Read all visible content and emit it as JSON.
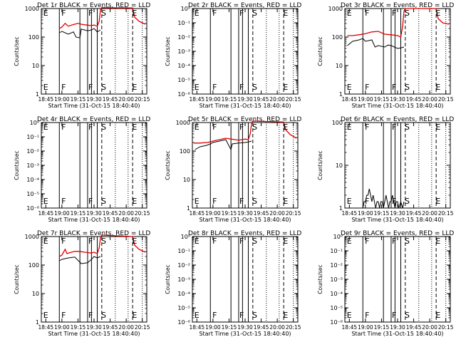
{
  "chart_data": [
    {
      "id": "det1",
      "type": "line",
      "title": "Det 1r BLACK = Events, RED = LLD",
      "xlabel": "Start Time (31-Oct-15 18:40:40)",
      "ylabel": "Counts/sec",
      "xlim": [
        18.68,
        20.32
      ],
      "x_ticks": [
        18.75,
        19.0,
        19.25,
        19.5,
        19.75,
        20.0,
        20.25
      ],
      "x_tick_labels": [
        "18:45",
        "19:00",
        "19:15",
        "19:30",
        "19:45",
        "20:00",
        "20:15"
      ],
      "yscale": "log",
      "ylim_log10": [
        0,
        3
      ],
      "y_ticks_log10": [
        0,
        1,
        2,
        3
      ],
      "y_tick_labels": [
        "1",
        "10",
        "100",
        "1000"
      ],
      "vlines_solid": [
        18.96,
        19.28,
        19.4,
        19.46,
        19.55
      ],
      "vlines_dashed": [
        19.62,
        20.1
      ],
      "vlines_dotted": [
        19.83,
        20.03,
        20.25
      ],
      "markers": [
        {
          "label": "E",
          "x": 18.7
        },
        {
          "label": "F",
          "x": 18.98
        },
        {
          "label": "F",
          "x": 19.4
        },
        {
          "label": "S",
          "x": 19.6
        },
        {
          "label": "E",
          "x": 20.08
        }
      ],
      "series": [
        {
          "name": "LLD",
          "color": "#e00000",
          "x": [
            18.96,
            19.0,
            19.05,
            19.1,
            19.15,
            19.2,
            19.25,
            19.3,
            19.35,
            19.4,
            19.45,
            19.5,
            19.55,
            19.58,
            19.6,
            19.62,
            20.1,
            20.13,
            20.2,
            20.3
          ],
          "log10y": [
            2.3,
            2.35,
            2.48,
            2.38,
            2.42,
            2.45,
            2.48,
            2.45,
            2.43,
            2.42,
            2.4,
            2.42,
            2.38,
            2.55,
            2.95,
            3.03,
            3.02,
            2.7,
            2.55,
            2.45
          ]
        },
        {
          "name": "Events",
          "color": "#000000",
          "x": [
            18.96,
            19.0,
            19.1,
            19.18,
            19.22,
            19.28,
            19.3,
            19.4,
            19.46,
            19.5,
            19.55,
            19.6
          ],
          "log10y": [
            2.15,
            2.2,
            2.1,
            2.18,
            2.0,
            1.97,
            2.28,
            2.22,
            2.25,
            2.3,
            2.18,
            2.25
          ]
        }
      ]
    },
    {
      "id": "det2",
      "type": "line",
      "title": "Det 2r BLACK = Events, RED = LLD",
      "xlabel": "Start Time (31-Oct-15 18:40:40)",
      "ylabel": "Counts/sec",
      "xlim": [
        18.68,
        20.32
      ],
      "x_ticks": [
        18.75,
        19.0,
        19.25,
        19.5,
        19.75,
        20.0,
        20.25
      ],
      "x_tick_labels": [
        "18:45",
        "19:00",
        "19:15",
        "19:30",
        "19:45",
        "20:00",
        "20:15"
      ],
      "yscale": "log",
      "ylim_log10": [
        -6,
        0
      ],
      "y_ticks_log10": [
        -6,
        -5,
        -4,
        -3,
        -2,
        -1,
        0
      ],
      "y_tick_labels": [
        "10⁻⁶",
        "10⁻⁵",
        "10⁻⁴",
        "10⁻³",
        "10⁻²",
        "10⁻¹",
        "10⁰"
      ],
      "vlines_solid": [
        18.96,
        19.28,
        19.4,
        19.46,
        19.55
      ],
      "vlines_dashed": [
        19.62,
        20.1
      ],
      "vlines_dotted": [
        19.83,
        20.03,
        20.25
      ],
      "markers": [
        {
          "label": "E",
          "x": 18.7
        },
        {
          "label": "F",
          "x": 18.98
        },
        {
          "label": "F",
          "x": 19.4
        },
        {
          "label": "S",
          "x": 19.6
        },
        {
          "label": "E",
          "x": 20.08
        }
      ],
      "series": []
    },
    {
      "id": "det3",
      "type": "line",
      "title": "Det 3r BLACK = Events, RED = LLD",
      "xlabel": "Start Time (31-Oct-15 18:40:40)",
      "ylabel": "Counts/sec",
      "xlim": [
        18.68,
        20.32
      ],
      "x_ticks": [
        18.75,
        19.0,
        19.25,
        19.5,
        19.75,
        20.0,
        20.25
      ],
      "x_tick_labels": [
        "18:45",
        "19:00",
        "19:15",
        "19:30",
        "19:45",
        "20:00",
        "20:15"
      ],
      "yscale": "log",
      "ylim_log10": [
        0,
        3
      ],
      "y_ticks_log10": [
        0,
        1,
        2,
        3
      ],
      "y_tick_labels": [
        "1",
        "10",
        "100",
        "1000"
      ],
      "vlines_solid": [
        18.96,
        19.28,
        19.4,
        19.46,
        19.55
      ],
      "vlines_dashed": [
        19.62,
        20.1
      ],
      "vlines_dotted": [
        19.83,
        20.03,
        20.25
      ],
      "markers": [
        {
          "label": "E",
          "x": 18.7
        },
        {
          "label": "F",
          "x": 18.98
        },
        {
          "label": "F",
          "x": 19.4
        },
        {
          "label": "S",
          "x": 19.6
        },
        {
          "label": "E",
          "x": 20.08
        }
      ],
      "series": [
        {
          "name": "LLD",
          "color": "#e00000",
          "x": [
            18.72,
            18.8,
            18.9,
            18.96,
            19.0,
            19.05,
            19.1,
            19.2,
            19.3,
            19.4,
            19.5,
            19.55,
            19.58,
            19.6,
            19.62,
            20.1,
            20.13,
            20.2,
            20.3
          ],
          "log10y": [
            2.05,
            2.05,
            2.08,
            2.1,
            2.12,
            2.15,
            2.18,
            2.2,
            2.1,
            2.08,
            2.05,
            2.0,
            2.4,
            2.9,
            3.0,
            3.0,
            2.65,
            2.5,
            2.45
          ]
        },
        {
          "name": "Events",
          "color": "#000000",
          "x": [
            18.72,
            18.8,
            18.9,
            18.96,
            19.0,
            19.1,
            19.15,
            19.2,
            19.3,
            19.35,
            19.4,
            19.5,
            19.55,
            19.6
          ],
          "log10y": [
            1.7,
            1.85,
            1.9,
            1.95,
            1.85,
            1.9,
            1.65,
            1.7,
            1.65,
            1.72,
            1.7,
            1.6,
            1.62,
            1.65
          ]
        }
      ]
    },
    {
      "id": "det4",
      "type": "line",
      "title": "Det 4r BLACK = Events, RED = LLD",
      "xlabel": "Start Time (31-Oct-15 18:40:40)",
      "ylabel": "Counts/sec",
      "xlim": [
        18.68,
        20.32
      ],
      "x_ticks": [
        18.75,
        19.0,
        19.25,
        19.5,
        19.75,
        20.0,
        20.25
      ],
      "x_tick_labels": [
        "18:45",
        "19:00",
        "19:15",
        "19:30",
        "19:45",
        "20:00",
        "20:15"
      ],
      "yscale": "log",
      "ylim_log10": [
        -6,
        0
      ],
      "y_ticks_log10": [
        -6,
        -5,
        -4,
        -3,
        -2,
        -1,
        0
      ],
      "y_tick_labels": [
        "10⁻⁶",
        "10⁻⁵",
        "10⁻⁴",
        "10⁻³",
        "10⁻²",
        "10⁻¹",
        "10⁰"
      ],
      "vlines_solid": [
        18.96,
        19.28,
        19.4,
        19.46,
        19.55
      ],
      "vlines_dashed": [
        19.62,
        20.1
      ],
      "vlines_dotted": [
        19.83,
        20.03,
        20.25
      ],
      "markers": [
        {
          "label": "E",
          "x": 18.7
        },
        {
          "label": "F",
          "x": 18.98
        },
        {
          "label": "F",
          "x": 19.4
        },
        {
          "label": "S",
          "x": 19.6
        },
        {
          "label": "E",
          "x": 20.08
        }
      ],
      "series": []
    },
    {
      "id": "det5",
      "type": "line",
      "title": "Det 5r BLACK = Events, RED = LLD",
      "xlabel": "Start Time (31-Oct-15 18:40:40)",
      "ylabel": "Counts/sec",
      "xlim": [
        18.68,
        20.32
      ],
      "x_ticks": [
        18.75,
        19.0,
        19.25,
        19.5,
        19.75,
        20.0,
        20.25
      ],
      "x_tick_labels": [
        "18:45",
        "19:00",
        "19:15",
        "19:30",
        "19:45",
        "20:00",
        "20:15"
      ],
      "yscale": "log",
      "ylim_log10": [
        0,
        3
      ],
      "y_ticks_log10": [
        0,
        1,
        2,
        3
      ],
      "y_tick_labels": [
        "1",
        "10",
        "100",
        "1000"
      ],
      "vlines_solid": [
        18.96,
        19.28,
        19.4,
        19.46,
        19.55
      ],
      "vlines_dashed": [
        19.62,
        20.1
      ],
      "vlines_dotted": [
        19.83,
        20.03,
        20.25
      ],
      "markers": [
        {
          "label": "E",
          "x": 18.7
        },
        {
          "label": "F",
          "x": 18.98
        },
        {
          "label": "F",
          "x": 19.4
        },
        {
          "label": "S",
          "x": 19.6
        },
        {
          "label": "E",
          "x": 20.08
        }
      ],
      "series": [
        {
          "name": "LLD",
          "color": "#e00000",
          "x": [
            18.7,
            18.8,
            18.9,
            18.96,
            19.0,
            19.1,
            19.2,
            19.28,
            19.35,
            19.4,
            19.45,
            19.5,
            19.55,
            19.58,
            19.6,
            19.62,
            20.1,
            20.13,
            20.2,
            20.3
          ],
          "log10y": [
            2.28,
            2.28,
            2.3,
            2.32,
            2.35,
            2.4,
            2.45,
            2.42,
            2.4,
            2.38,
            2.4,
            2.42,
            2.4,
            2.6,
            2.95,
            3.05,
            3.02,
            2.75,
            2.58,
            2.45
          ]
        },
        {
          "name": "Events",
          "color": "#000000",
          "x": [
            18.72,
            18.8,
            18.9,
            18.96,
            19.0,
            19.1,
            19.2,
            19.28,
            19.3,
            19.4,
            19.5,
            19.55,
            19.6
          ],
          "log10y": [
            2.05,
            2.15,
            2.2,
            2.25,
            2.3,
            2.35,
            2.4,
            2.05,
            2.25,
            2.28,
            2.3,
            2.32,
            2.35
          ]
        }
      ]
    },
    {
      "id": "det6",
      "type": "line",
      "title": "Det 6r BLACK = Events, RED = LLD",
      "xlabel": "Start Time (31-Oct-15 18:40:40)",
      "ylabel": "Counts/sec",
      "xlim": [
        18.68,
        20.32
      ],
      "x_ticks": [
        18.75,
        19.0,
        19.25,
        19.5,
        19.75,
        20.0,
        20.25
      ],
      "x_tick_labels": [
        "18:45",
        "19:00",
        "19:15",
        "19:30",
        "19:45",
        "20:00",
        "20:15"
      ],
      "yscale": "log",
      "ylim_log10": [
        0,
        2
      ],
      "y_ticks_log10": [
        0,
        1,
        2
      ],
      "y_tick_labels": [
        "1",
        "10",
        "100"
      ],
      "vlines_solid": [
        18.96,
        19.28,
        19.4,
        19.46,
        19.55
      ],
      "vlines_dashed": [
        19.62,
        20.1
      ],
      "vlines_dotted": [
        19.83,
        20.03,
        20.25
      ],
      "markers": [
        {
          "label": "E",
          "x": 18.7
        },
        {
          "label": "F",
          "x": 18.98
        },
        {
          "label": "F",
          "x": 19.4
        },
        {
          "label": "S",
          "x": 19.6
        },
        {
          "label": "E",
          "x": 20.08
        }
      ],
      "series": [
        {
          "name": "Events",
          "color": "#000000",
          "x": [
            18.96,
            18.98,
            19.0,
            19.02,
            19.04,
            19.06,
            19.08,
            19.1,
            19.12,
            19.14,
            19.16,
            19.18,
            19.2,
            19.22,
            19.24,
            19.26,
            19.28,
            19.3,
            19.32,
            19.34,
            19.36,
            19.38,
            19.4,
            19.42,
            19.44,
            19.46,
            19.48,
            19.5,
            19.52,
            19.55,
            19.58,
            19.6
          ],
          "log10y": [
            0,
            0.15,
            0.15,
            0.3,
            0.3,
            0.45,
            0.3,
            0.15,
            0.3,
            0.15,
            0,
            0.15,
            0.15,
            0,
            0.15,
            0.15,
            0,
            0.15,
            0.3,
            0.15,
            0,
            0.15,
            0.15,
            0.3,
            0.15,
            0,
            0.15,
            0.15,
            0,
            0.15,
            0,
            0.15
          ]
        }
      ]
    },
    {
      "id": "det7",
      "type": "line",
      "title": "Det 7r BLACK = Events, RED = LLD",
      "xlabel": "Start Time (31-Oct-15 18:40:40)",
      "ylabel": "Counts/sec",
      "xlim": [
        18.68,
        20.32
      ],
      "x_ticks": [
        18.75,
        19.0,
        19.25,
        19.5,
        19.75,
        20.0,
        20.25
      ],
      "x_tick_labels": [
        "18:45",
        "19:00",
        "19:15",
        "19:30",
        "19:45",
        "20:00",
        "20:15"
      ],
      "yscale": "log",
      "ylim_log10": [
        0,
        3
      ],
      "y_ticks_log10": [
        0,
        1,
        2,
        3
      ],
      "y_tick_labels": [
        "1",
        "10",
        "100",
        "1000"
      ],
      "vlines_solid": [
        18.96,
        19.28,
        19.4,
        19.46,
        19.55
      ],
      "vlines_dashed": [
        19.62,
        20.1
      ],
      "vlines_dotted": [
        19.83,
        20.03,
        20.25
      ],
      "markers": [
        {
          "label": "E",
          "x": 18.7
        },
        {
          "label": "F",
          "x": 18.98
        },
        {
          "label": "F",
          "x": 19.4
        },
        {
          "label": "S",
          "x": 19.6
        },
        {
          "label": "E",
          "x": 20.08
        }
      ],
      "series": [
        {
          "name": "LLD",
          "color": "#e00000",
          "x": [
            18.96,
            19.0,
            19.05,
            19.08,
            19.1,
            19.15,
            19.2,
            19.28,
            19.35,
            19.4,
            19.45,
            19.5,
            19.55,
            19.58,
            19.6,
            19.62,
            20.1,
            20.13,
            20.2,
            20.3
          ],
          "log10y": [
            2.3,
            2.35,
            2.55,
            2.4,
            2.42,
            2.45,
            2.48,
            2.48,
            2.45,
            2.44,
            2.42,
            2.45,
            2.4,
            2.6,
            2.95,
            3.05,
            3.0,
            2.7,
            2.55,
            2.45
          ]
        },
        {
          "name": "Events",
          "color": "#000000",
          "x": [
            18.96,
            19.0,
            19.1,
            19.2,
            19.28,
            19.3,
            19.4,
            19.46,
            19.5,
            19.55,
            19.6
          ],
          "log10y": [
            2.15,
            2.2,
            2.25,
            2.28,
            2.1,
            2.05,
            2.08,
            2.2,
            2.3,
            2.25,
            2.3
          ]
        }
      ]
    },
    {
      "id": "det8",
      "type": "line",
      "title": "Det 8r BLACK = Events, RED = LLD",
      "xlabel": "Start Time (31-Oct-15 18:40:40)",
      "ylabel": "Counts/sec",
      "xlim": [
        18.68,
        20.32
      ],
      "x_ticks": [
        18.75,
        19.0,
        19.25,
        19.5,
        19.75,
        20.0,
        20.25
      ],
      "x_tick_labels": [
        "18:45",
        "19:00",
        "19:15",
        "19:30",
        "19:45",
        "20:00",
        "20:15"
      ],
      "yscale": "log",
      "ylim_log10": [
        -6,
        0
      ],
      "y_ticks_log10": [
        -6,
        -5,
        -4,
        -3,
        -2,
        -1,
        0
      ],
      "y_tick_labels": [
        "10⁻⁶",
        "10⁻⁵",
        "10⁻⁴",
        "10⁻³",
        "10⁻²",
        "10⁻¹",
        "10⁰"
      ],
      "vlines_solid": [
        18.96,
        19.28,
        19.4,
        19.46,
        19.55
      ],
      "vlines_dashed": [
        19.62,
        20.1
      ],
      "vlines_dotted": [
        19.83,
        20.03,
        20.25
      ],
      "markers": [
        {
          "label": "E",
          "x": 18.7
        },
        {
          "label": "F",
          "x": 18.98
        },
        {
          "label": "F",
          "x": 19.4
        },
        {
          "label": "S",
          "x": 19.6
        },
        {
          "label": "E",
          "x": 20.08
        }
      ],
      "series": []
    },
    {
      "id": "det9",
      "type": "line",
      "title": "Det 9r BLACK = Events, RED = LLD",
      "xlabel": "Start Time (31-Oct-15 18:40:40)",
      "ylabel": "Counts/sec",
      "xlim": [
        18.68,
        20.32
      ],
      "x_ticks": [
        18.75,
        19.0,
        19.25,
        19.5,
        19.75,
        20.0,
        20.25
      ],
      "x_tick_labels": [
        "18:45",
        "19:00",
        "19:15",
        "19:30",
        "19:45",
        "20:00",
        "20:15"
      ],
      "yscale": "log",
      "ylim_log10": [
        -6,
        0
      ],
      "y_ticks_log10": [
        -6,
        -5,
        -4,
        -3,
        -2,
        -1,
        0
      ],
      "y_tick_labels": [
        "10⁻⁶",
        "10⁻⁵",
        "10⁻⁴",
        "10⁻³",
        "10⁻²",
        "10⁻¹",
        "10⁰"
      ],
      "vlines_solid": [
        18.96,
        19.28,
        19.4,
        19.46,
        19.55
      ],
      "vlines_dashed": [
        19.62,
        20.1
      ],
      "vlines_dotted": [
        19.83,
        20.03,
        20.25
      ],
      "markers": [
        {
          "label": "E",
          "x": 18.7
        },
        {
          "label": "F",
          "x": 18.98
        },
        {
          "label": "F",
          "x": 19.4
        },
        {
          "label": "S",
          "x": 19.6
        },
        {
          "label": "E",
          "x": 20.08
        }
      ],
      "series": []
    }
  ]
}
